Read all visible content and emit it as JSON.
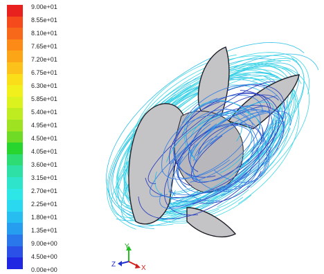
{
  "colorbar": {
    "colors": [
      "#e8211e",
      "#f44a1c",
      "#f8681a",
      "#fb8a17",
      "#fca617",
      "#fcc11a",
      "#fade19",
      "#f2f01c",
      "#dcf21e",
      "#bfec20",
      "#9ee221",
      "#6fdb27",
      "#28d52f",
      "#2ddc73",
      "#2fe0a6",
      "#2ee4cb",
      "#2de7e6",
      "#2ad8f0",
      "#27bdf1",
      "#279df0",
      "#2a77ec",
      "#2b50e7",
      "#1f27e2"
    ],
    "labels": [
      "9.00e+01",
      "8.55e+01",
      "8.10e+01",
      "7.65e+01",
      "7.20e+01",
      "6.75e+01",
      "6.30e+01",
      "5.85e+01",
      "5.40e+01",
      "4.95e+01",
      "4.50e+01",
      "4.05e+01",
      "3.60e+01",
      "3.15e+01",
      "2.70e+01",
      "2.25e+01",
      "1.80e+01",
      "1.35e+01",
      "9.00e+00",
      "4.50e+00",
      "0.00e+00"
    ]
  },
  "triad": {
    "y": "Y",
    "z": "Z",
    "x": "X"
  },
  "scene": {
    "blade_fill": "#c4c4c6",
    "blade_edge": "#1e1e28",
    "streamline_colors": [
      "#3cd6e6",
      "#2bbfe8",
      "#3a7fe0",
      "#2a3fbf"
    ]
  }
}
